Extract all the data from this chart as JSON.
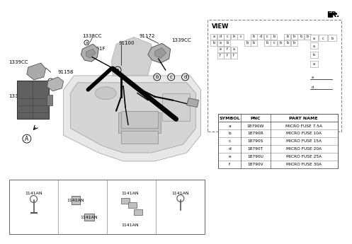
{
  "page_background": "#ffffff",
  "fr_label": "FR.",
  "part_labels": {
    "1338CC_top": "1338CC",
    "91191F": "91191F",
    "91172": "91172",
    "91100": "91100",
    "1338CC_right": "1339CC",
    "91158": "91158",
    "1339CC_left": "1339CC",
    "1339CC_mid": "1339CC"
  },
  "view_label": "VIEW",
  "view_circle": "A",
  "table_headers": [
    "SYMBOL",
    "PNC",
    "PART NAME"
  ],
  "table_rows": [
    [
      "a",
      "18790W",
      "MICRO FUSE 7.5A"
    ],
    [
      "b",
      "18790R",
      "MICRO FUSE 10A"
    ],
    [
      "c",
      "18790S",
      "MICRO FUSE 15A"
    ],
    [
      "d",
      "18790T",
      "MICRO FUSE 20A"
    ],
    [
      "e",
      "18790U",
      "MICRO FUSE 25A"
    ],
    [
      "f",
      "18790V",
      "MICRO FUSE 30A"
    ]
  ],
  "circle_labels": [
    "a",
    "b",
    "c",
    "d"
  ],
  "bottom_1141AN": "1141AN",
  "view_grid": {
    "row1": [
      "a",
      "d",
      "c",
      "b",
      "c",
      "",
      "b",
      "d",
      "c",
      "b",
      "",
      "b",
      "b",
      "b",
      "b"
    ],
    "row2": [
      "b",
      "a",
      "b",
      "",
      "",
      "b",
      "b",
      "",
      "b",
      "c",
      "b",
      "b",
      "b",
      "",
      ""
    ],
    "row3": [
      "",
      "e",
      "f",
      "a",
      "",
      "",
      "",
      "",
      "",
      "",
      "",
      "",
      "",
      "",
      ""
    ],
    "row4": [
      "",
      "f",
      "f",
      "f",
      "",
      "",
      "",
      "",
      "",
      "",
      "",
      "",
      "",
      "",
      ""
    ]
  },
  "view_right_col": {
    "row1": [
      "a",
      "c",
      "b"
    ],
    "row2": [
      "a"
    ],
    "row3": [
      "b"
    ],
    "row4": [
      "a"
    ],
    "bottom": [
      "a",
      "d"
    ]
  }
}
